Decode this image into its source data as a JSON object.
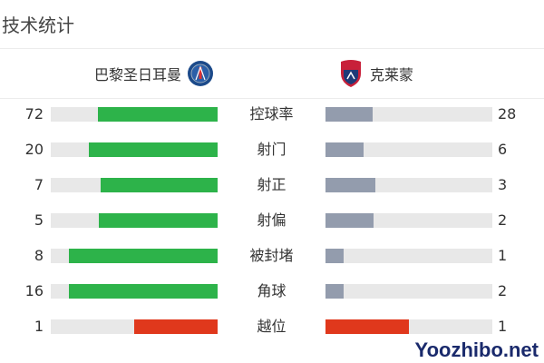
{
  "header": {
    "title": "技术统计"
  },
  "teams": {
    "home": {
      "name": "巴黎圣日耳曼",
      "logo_icon": "psg-crest-icon"
    },
    "away": {
      "name": "克莱蒙",
      "logo_icon": "clermont-crest-icon"
    }
  },
  "colors": {
    "home_bar": "#2db34a",
    "away_bar": "#939cad",
    "highlight_bar": "#e0381c",
    "track": "#e8e8e8"
  },
  "stats": [
    {
      "label": "控球率",
      "home": "72",
      "away": "28",
      "home_share": 0.72,
      "away_share": 0.28,
      "highlight": false
    },
    {
      "label": "射门",
      "home": "20",
      "away": "6",
      "home_share": 0.77,
      "away_share": 0.23,
      "highlight": false
    },
    {
      "label": "射正",
      "home": "7",
      "away": "3",
      "home_share": 0.7,
      "away_share": 0.3,
      "highlight": false
    },
    {
      "label": "射偏",
      "home": "5",
      "away": "2",
      "home_share": 0.71,
      "away_share": 0.29,
      "highlight": false
    },
    {
      "label": "被封堵",
      "home": "8",
      "away": "1",
      "home_share": 0.89,
      "away_share": 0.11,
      "highlight": false
    },
    {
      "label": "角球",
      "home": "16",
      "away": "2",
      "home_share": 0.89,
      "away_share": 0.11,
      "highlight": false
    },
    {
      "label": "越位",
      "home": "1",
      "away": "1",
      "home_share": 0.5,
      "away_share": 0.5,
      "highlight": true
    }
  ],
  "watermark": "Yoozhibo.net"
}
